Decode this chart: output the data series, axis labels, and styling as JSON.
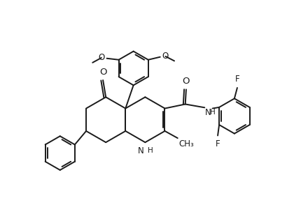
{
  "background": "#ffffff",
  "line_color": "#1a1a1a",
  "line_width": 1.4,
  "font_size": 8.5,
  "fig_width": 4.2,
  "fig_height": 3.07,
  "dpi": 100,
  "xlim": [
    0,
    10
  ],
  "ylim": [
    0,
    7.5
  ]
}
